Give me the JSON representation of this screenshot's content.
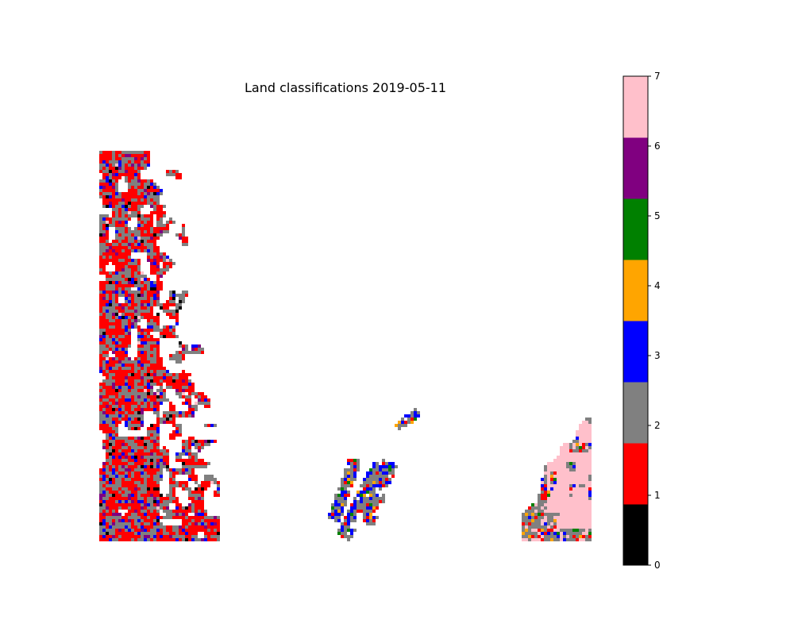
{
  "chart_data": {
    "type": "heatmap",
    "title": "Land classifications 2019-05-11",
    "xlabel": "",
    "ylabel": "",
    "colorbar": {
      "min": 0,
      "max": 7,
      "ticks": [
        0,
        1,
        2,
        3,
        4,
        5,
        6,
        7
      ],
      "tick_labels": [
        "0",
        "1",
        "2",
        "3",
        "4",
        "5",
        "6",
        "7"
      ],
      "class_colors": [
        "#000000",
        "#ff0000",
        "#808080",
        "#0000ff",
        "#ffa500",
        "#008000",
        "#800080",
        "#ffc0cb"
      ]
    },
    "no_data_color": "#ffffff",
    "axes_visible": false,
    "regions": [
      {
        "area": "west-edge strip",
        "dominant_classes": [
          1,
          2
        ],
        "minor_classes": [
          0,
          3,
          6
        ]
      },
      {
        "area": "central narrow strips",
        "dominant_classes": [
          2,
          3
        ],
        "minor_classes": [
          1,
          4,
          5
        ]
      },
      {
        "area": "south-east corner",
        "dominant_classes": [
          7,
          2
        ],
        "minor_classes": [
          1,
          3,
          4,
          5
        ]
      }
    ]
  }
}
